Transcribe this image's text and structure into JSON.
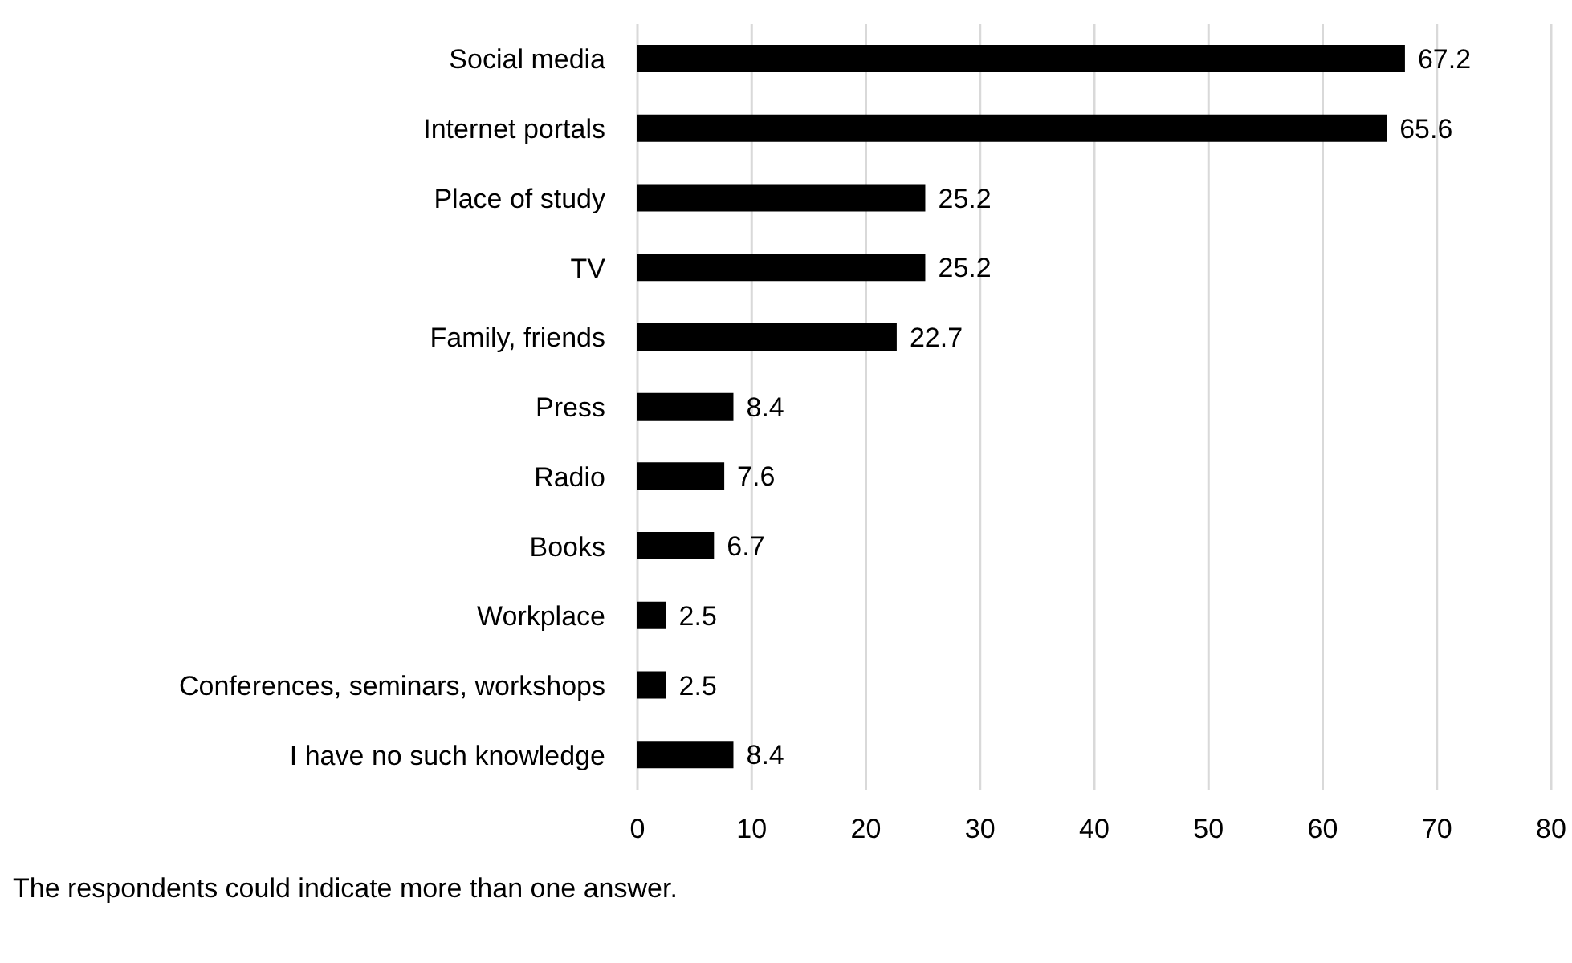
{
  "chart_data": {
    "type": "bar",
    "orientation": "horizontal",
    "categories": [
      "Social media",
      "Internet portals",
      "Place of study",
      "TV",
      "Family, friends",
      "Press",
      "Radio",
      "Books",
      "Workplace",
      "Conferences, seminars, workshops",
      "I have no such knowledge"
    ],
    "values": [
      67.2,
      65.6,
      25.2,
      25.2,
      22.7,
      8.4,
      7.6,
      6.7,
      2.5,
      2.5,
      8.4
    ],
    "color": "#000000",
    "xlim": [
      0,
      80
    ],
    "xticks": [
      0,
      10,
      20,
      30,
      40,
      50,
      60,
      70,
      80
    ],
    "grid": "x",
    "data_labels": true,
    "legend": false,
    "annotations": [
      "The respondents could indicate more than one answer."
    ]
  }
}
